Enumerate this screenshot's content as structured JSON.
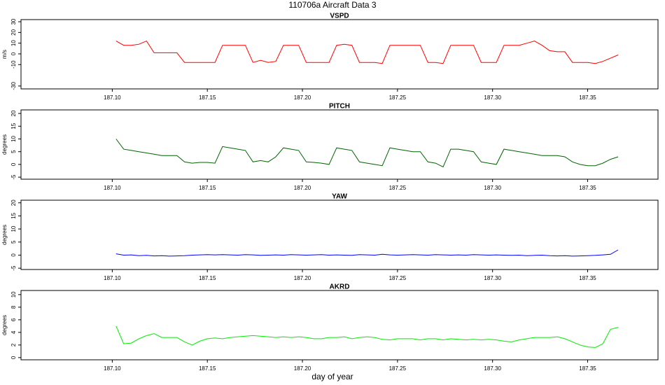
{
  "title": "110706a   Aircraft Data 3",
  "x_label": "day of year",
  "chart_data": [
    {
      "type": "line",
      "title": "VSPD",
      "y_label": "m/s",
      "x": [
        187.102,
        187.106,
        187.11,
        187.114,
        187.118,
        187.122,
        187.126,
        187.13,
        187.134,
        187.138,
        187.142,
        187.146,
        187.15,
        187.154,
        187.158,
        187.162,
        187.166,
        187.17,
        187.174,
        187.178,
        187.182,
        187.186,
        187.19,
        187.194,
        187.198,
        187.202,
        187.206,
        187.21,
        187.214,
        187.218,
        187.222,
        187.226,
        187.23,
        187.234,
        187.238,
        187.242,
        187.246,
        187.25,
        187.254,
        187.258,
        187.262,
        187.266,
        187.27,
        187.274,
        187.278,
        187.282,
        187.286,
        187.29,
        187.294,
        187.298,
        187.302,
        187.306,
        187.31,
        187.314,
        187.318,
        187.322,
        187.326,
        187.33,
        187.334,
        187.338,
        187.342,
        187.346,
        187.35,
        187.354,
        187.358,
        187.362,
        187.366
      ],
      "series": [
        {
          "color": "#ff0000",
          "values": [
            12,
            8,
            8,
            9,
            12,
            1,
            1,
            1,
            1,
            -8,
            -8,
            -8,
            -8,
            -8,
            8,
            8,
            8,
            8,
            -8,
            -6,
            -8,
            -7,
            8,
            8,
            8,
            -8,
            -8,
            -8,
            -8,
            8,
            9,
            8,
            -8,
            -8,
            -8,
            -9,
            8,
            8,
            8,
            8,
            8,
            -8,
            -8,
            -9,
            8,
            8,
            8,
            8,
            -8,
            -8,
            -8,
            8,
            8,
            8,
            10,
            12,
            8,
            3,
            2,
            2,
            -8,
            -8,
            -8,
            -9,
            -7,
            -4,
            -1
          ]
        }
      ],
      "xlim": [
        187.052,
        187.387
      ],
      "xticks": [
        {
          "value": 187.1,
          "label": "187.10"
        },
        187.15,
        {
          "value": 187.2,
          "label": "187.20"
        },
        187.25,
        {
          "value": 187.3,
          "label": "187.30"
        },
        187.35
      ],
      "ylim": [
        -32.7,
        32
      ],
      "yticks": [
        -30,
        -10,
        0,
        10,
        20,
        30
      ]
    },
    {
      "type": "line",
      "title": "PITCH",
      "y_label": "degrees",
      "x": [
        187.102,
        187.106,
        187.11,
        187.114,
        187.118,
        187.122,
        187.126,
        187.13,
        187.134,
        187.138,
        187.142,
        187.146,
        187.15,
        187.154,
        187.158,
        187.162,
        187.166,
        187.17,
        187.174,
        187.178,
        187.182,
        187.186,
        187.19,
        187.194,
        187.198,
        187.202,
        187.206,
        187.21,
        187.214,
        187.218,
        187.222,
        187.226,
        187.23,
        187.234,
        187.238,
        187.242,
        187.246,
        187.25,
        187.254,
        187.258,
        187.262,
        187.266,
        187.27,
        187.274,
        187.278,
        187.282,
        187.286,
        187.29,
        187.294,
        187.298,
        187.302,
        187.306,
        187.31,
        187.314,
        187.318,
        187.322,
        187.326,
        187.33,
        187.334,
        187.338,
        187.342,
        187.346,
        187.35,
        187.354,
        187.358,
        187.362,
        187.366
      ],
      "series": [
        {
          "color": "#006400",
          "values": [
            10,
            6,
            5.5,
            5,
            4.5,
            4,
            3.5,
            3.5,
            3.5,
            1,
            0.5,
            0.8,
            0.8,
            0.5,
            7,
            6.5,
            6,
            5.5,
            1,
            1.5,
            1,
            3,
            6.5,
            6,
            5.5,
            1,
            0.8,
            0.5,
            0,
            6.5,
            6,
            5.5,
            1,
            0.5,
            0,
            -0.5,
            6.5,
            6,
            5.5,
            5,
            5,
            1,
            0.5,
            -1,
            6,
            6,
            5.5,
            5,
            1,
            0.5,
            0,
            6,
            5.5,
            5,
            4.5,
            4,
            3.5,
            3.5,
            3.5,
            3,
            1,
            0,
            -0.5,
            -0.5,
            0.5,
            2,
            3
          ]
        }
      ],
      "xlim": [
        187.052,
        187.387
      ],
      "xticks": [
        {
          "value": 187.1,
          "label": "187.10"
        },
        187.15,
        {
          "value": 187.2,
          "label": "187.20"
        },
        187.25,
        {
          "value": 187.3,
          "label": "187.30"
        },
        187.35
      ],
      "ylim": [
        -5.8,
        21.4
      ],
      "yticks": [
        -5,
        0,
        5,
        10,
        15,
        20
      ]
    },
    {
      "type": "line",
      "title": "YAW",
      "y_label": "degrees",
      "x": [
        187.102,
        187.106,
        187.11,
        187.114,
        187.118,
        187.122,
        187.126,
        187.13,
        187.134,
        187.138,
        187.142,
        187.146,
        187.15,
        187.154,
        187.158,
        187.162,
        187.166,
        187.17,
        187.174,
        187.178,
        187.182,
        187.186,
        187.19,
        187.194,
        187.198,
        187.202,
        187.206,
        187.21,
        187.214,
        187.218,
        187.222,
        187.226,
        187.23,
        187.234,
        187.238,
        187.242,
        187.246,
        187.25,
        187.254,
        187.258,
        187.262,
        187.266,
        187.27,
        187.274,
        187.278,
        187.282,
        187.286,
        187.29,
        187.294,
        187.298,
        187.302,
        187.306,
        187.31,
        187.314,
        187.318,
        187.322,
        187.326,
        187.33,
        187.334,
        187.338,
        187.342,
        187.346,
        187.35,
        187.354,
        187.358,
        187.362,
        187.366
      ],
      "series": [
        {
          "color": "#0000ff",
          "values": [
            0.5,
            0,
            0.1,
            -0.2,
            -0.1,
            -0.3,
            -0.2,
            -0.4,
            -0.3,
            -0.2,
            0,
            0.1,
            0.2,
            0.1,
            0.2,
            0.1,
            0,
            0.2,
            0.1,
            -0.1,
            0,
            0.1,
            0,
            0.2,
            0.1,
            0,
            0.1,
            0.2,
            0,
            0.1,
            0,
            -0.1,
            0.2,
            0.1,
            0,
            0.3,
            0.1,
            0,
            0.1,
            0.2,
            0.1,
            0,
            0.2,
            0.1,
            0,
            0.1,
            0,
            0.2,
            0.1,
            0,
            0.1,
            0,
            -0.1,
            0,
            -0.2,
            -0.1,
            0,
            -0.2,
            -0.3,
            -0.2,
            -0.4,
            -0.3,
            -0.2,
            -0.1,
            0.1,
            0.3,
            2
          ]
        }
      ],
      "xlim": [
        187.052,
        187.387
      ],
      "xticks": [
        {
          "value": 187.1,
          "label": "187.10"
        },
        187.15,
        {
          "value": 187.2,
          "label": "187.20"
        },
        187.25,
        {
          "value": 187.3,
          "label": "187.30"
        },
        187.35
      ],
      "ylim": [
        -5.5,
        21
      ],
      "yticks": [
        -5,
        0,
        5,
        10,
        15,
        20
      ]
    },
    {
      "type": "line",
      "title": "AKRD",
      "y_label": "degrees",
      "x": [
        187.102,
        187.106,
        187.11,
        187.114,
        187.118,
        187.122,
        187.126,
        187.13,
        187.134,
        187.138,
        187.142,
        187.146,
        187.15,
        187.154,
        187.158,
        187.162,
        187.166,
        187.17,
        187.174,
        187.178,
        187.182,
        187.186,
        187.19,
        187.194,
        187.198,
        187.202,
        187.206,
        187.21,
        187.214,
        187.218,
        187.222,
        187.226,
        187.23,
        187.234,
        187.238,
        187.242,
        187.246,
        187.25,
        187.254,
        187.258,
        187.262,
        187.266,
        187.27,
        187.274,
        187.278,
        187.282,
        187.286,
        187.29,
        187.294,
        187.298,
        187.302,
        187.306,
        187.31,
        187.314,
        187.318,
        187.322,
        187.326,
        187.33,
        187.334,
        187.338,
        187.342,
        187.346,
        187.35,
        187.354,
        187.358,
        187.362,
        187.366
      ],
      "series": [
        {
          "color": "#00ee00",
          "values": [
            5,
            2.2,
            2.3,
            3,
            3.5,
            3.8,
            3.2,
            3.2,
            3.2,
            2.5,
            2,
            2.6,
            3,
            3.1,
            3,
            3.2,
            3.3,
            3.4,
            3.5,
            3.4,
            3.3,
            3.2,
            3.3,
            3.2,
            3.3,
            3.2,
            3,
            3,
            3.2,
            3.2,
            3.3,
            3,
            3.2,
            3.3,
            3.2,
            2.9,
            2.8,
            3,
            3,
            3,
            2.8,
            3,
            3,
            2.8,
            3,
            2.9,
            2.8,
            2.9,
            2.8,
            2.9,
            2.8,
            2.6,
            2.5,
            2.8,
            3,
            3.2,
            3.2,
            3.2,
            3.3,
            3,
            2.5,
            2,
            1.7,
            1.6,
            2.2,
            4.5,
            4.8
          ]
        }
      ],
      "xlim": [
        187.052,
        187.387
      ],
      "xticks": [
        {
          "value": 187.1,
          "label": "187.10"
        },
        187.15,
        {
          "value": 187.2,
          "label": "187.20"
        },
        187.25,
        {
          "value": 187.3,
          "label": "187.30"
        },
        187.35
      ],
      "ylim": [
        -0.35,
        10.65
      ],
      "yticks": [
        0,
        2,
        4,
        6,
        8,
        10
      ]
    }
  ]
}
